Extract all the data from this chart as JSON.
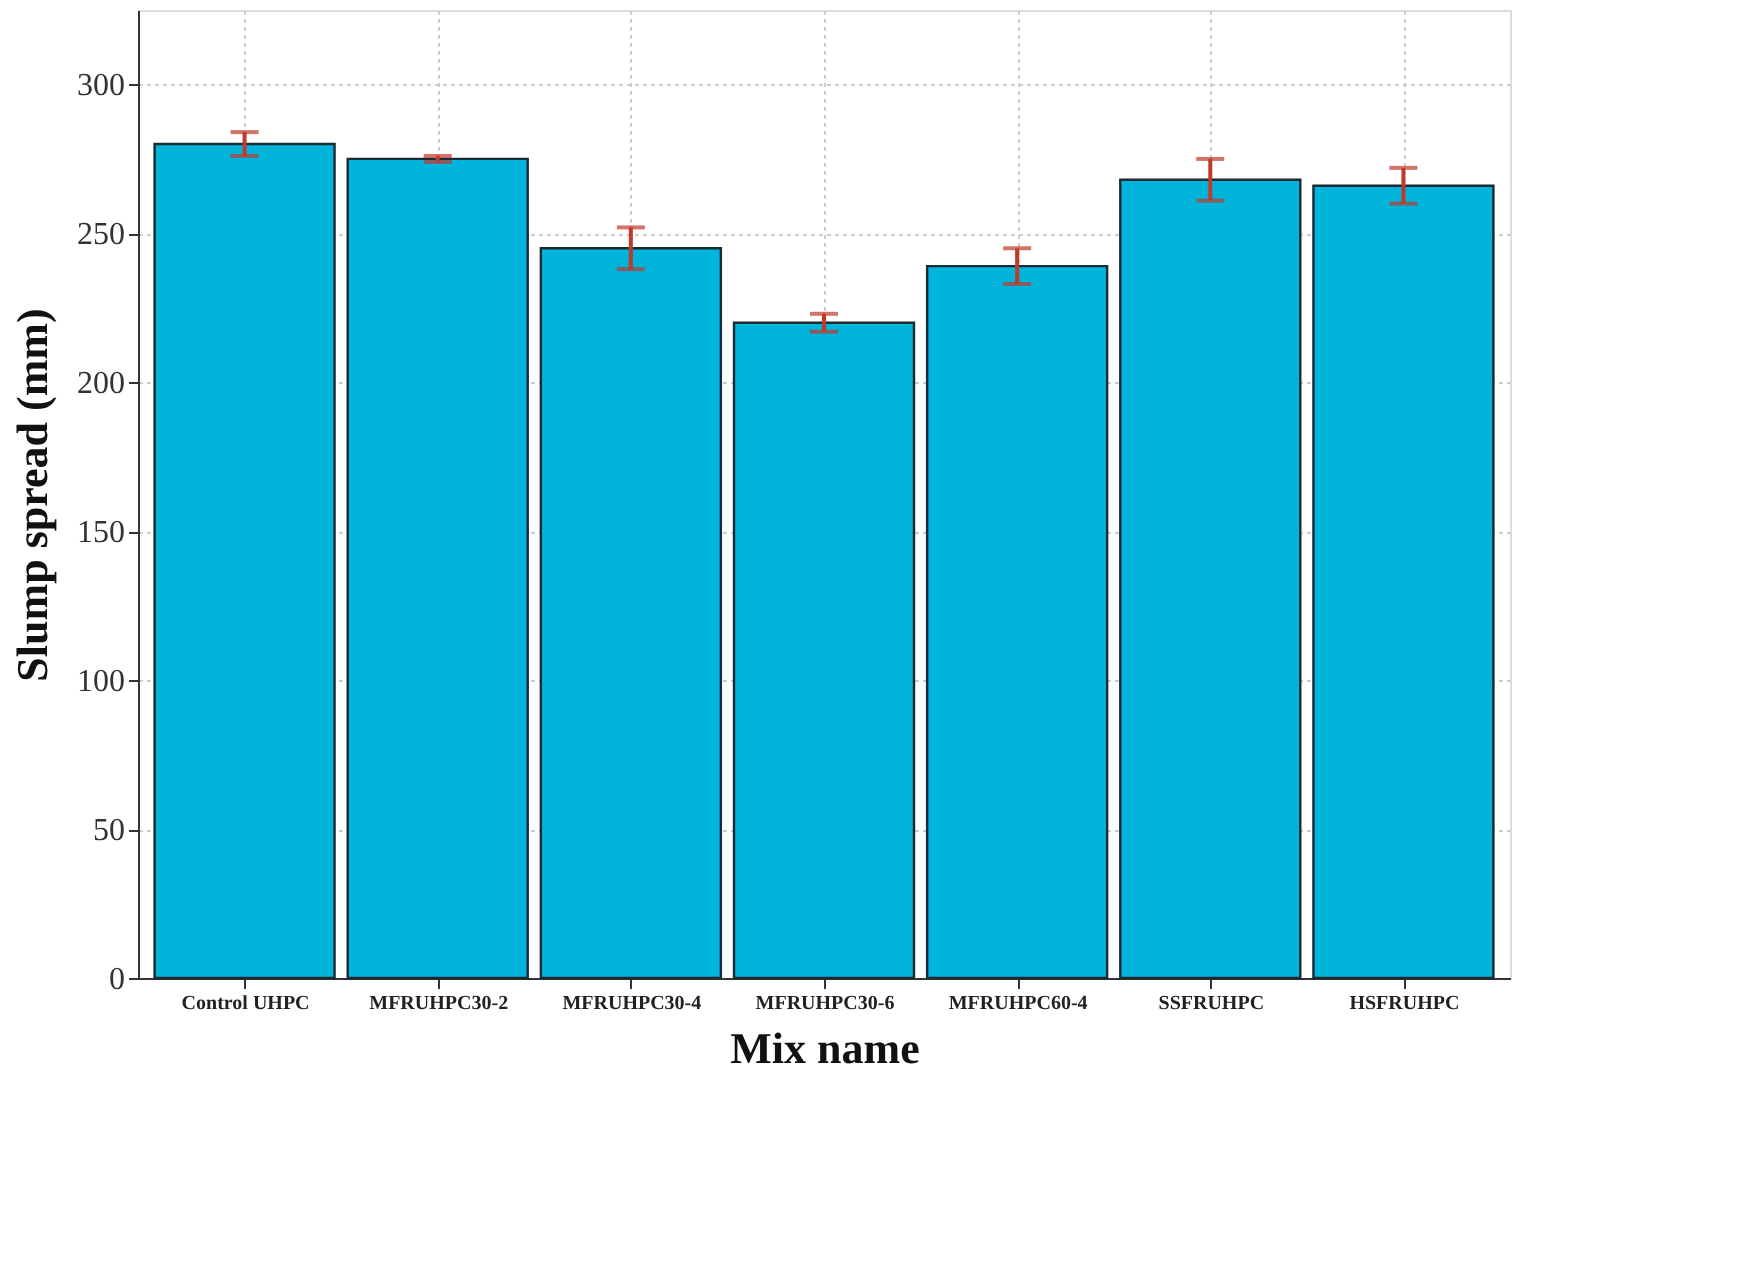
{
  "chart_data": {
    "type": "bar",
    "xlabel": "Mix name",
    "ylabel": "Slump spread (mm)",
    "categories": [
      "Control UHPC",
      "MFRUHPC30-2",
      "MFRUHPC30-4",
      "MFRUHPC30-6",
      "MFRUHPC60-4",
      "SSFRUHPC",
      "HSFRUHPC"
    ],
    "values": [
      280,
      275,
      245,
      220,
      239,
      268,
      266
    ],
    "errors": [
      4,
      1,
      7,
      3,
      6,
      7,
      6
    ],
    "color": "#00b4dc",
    "ylim": [
      0,
      325
    ],
    "yticks": [
      0,
      50,
      100,
      150,
      200,
      250,
      300
    ],
    "grid": true
  }
}
